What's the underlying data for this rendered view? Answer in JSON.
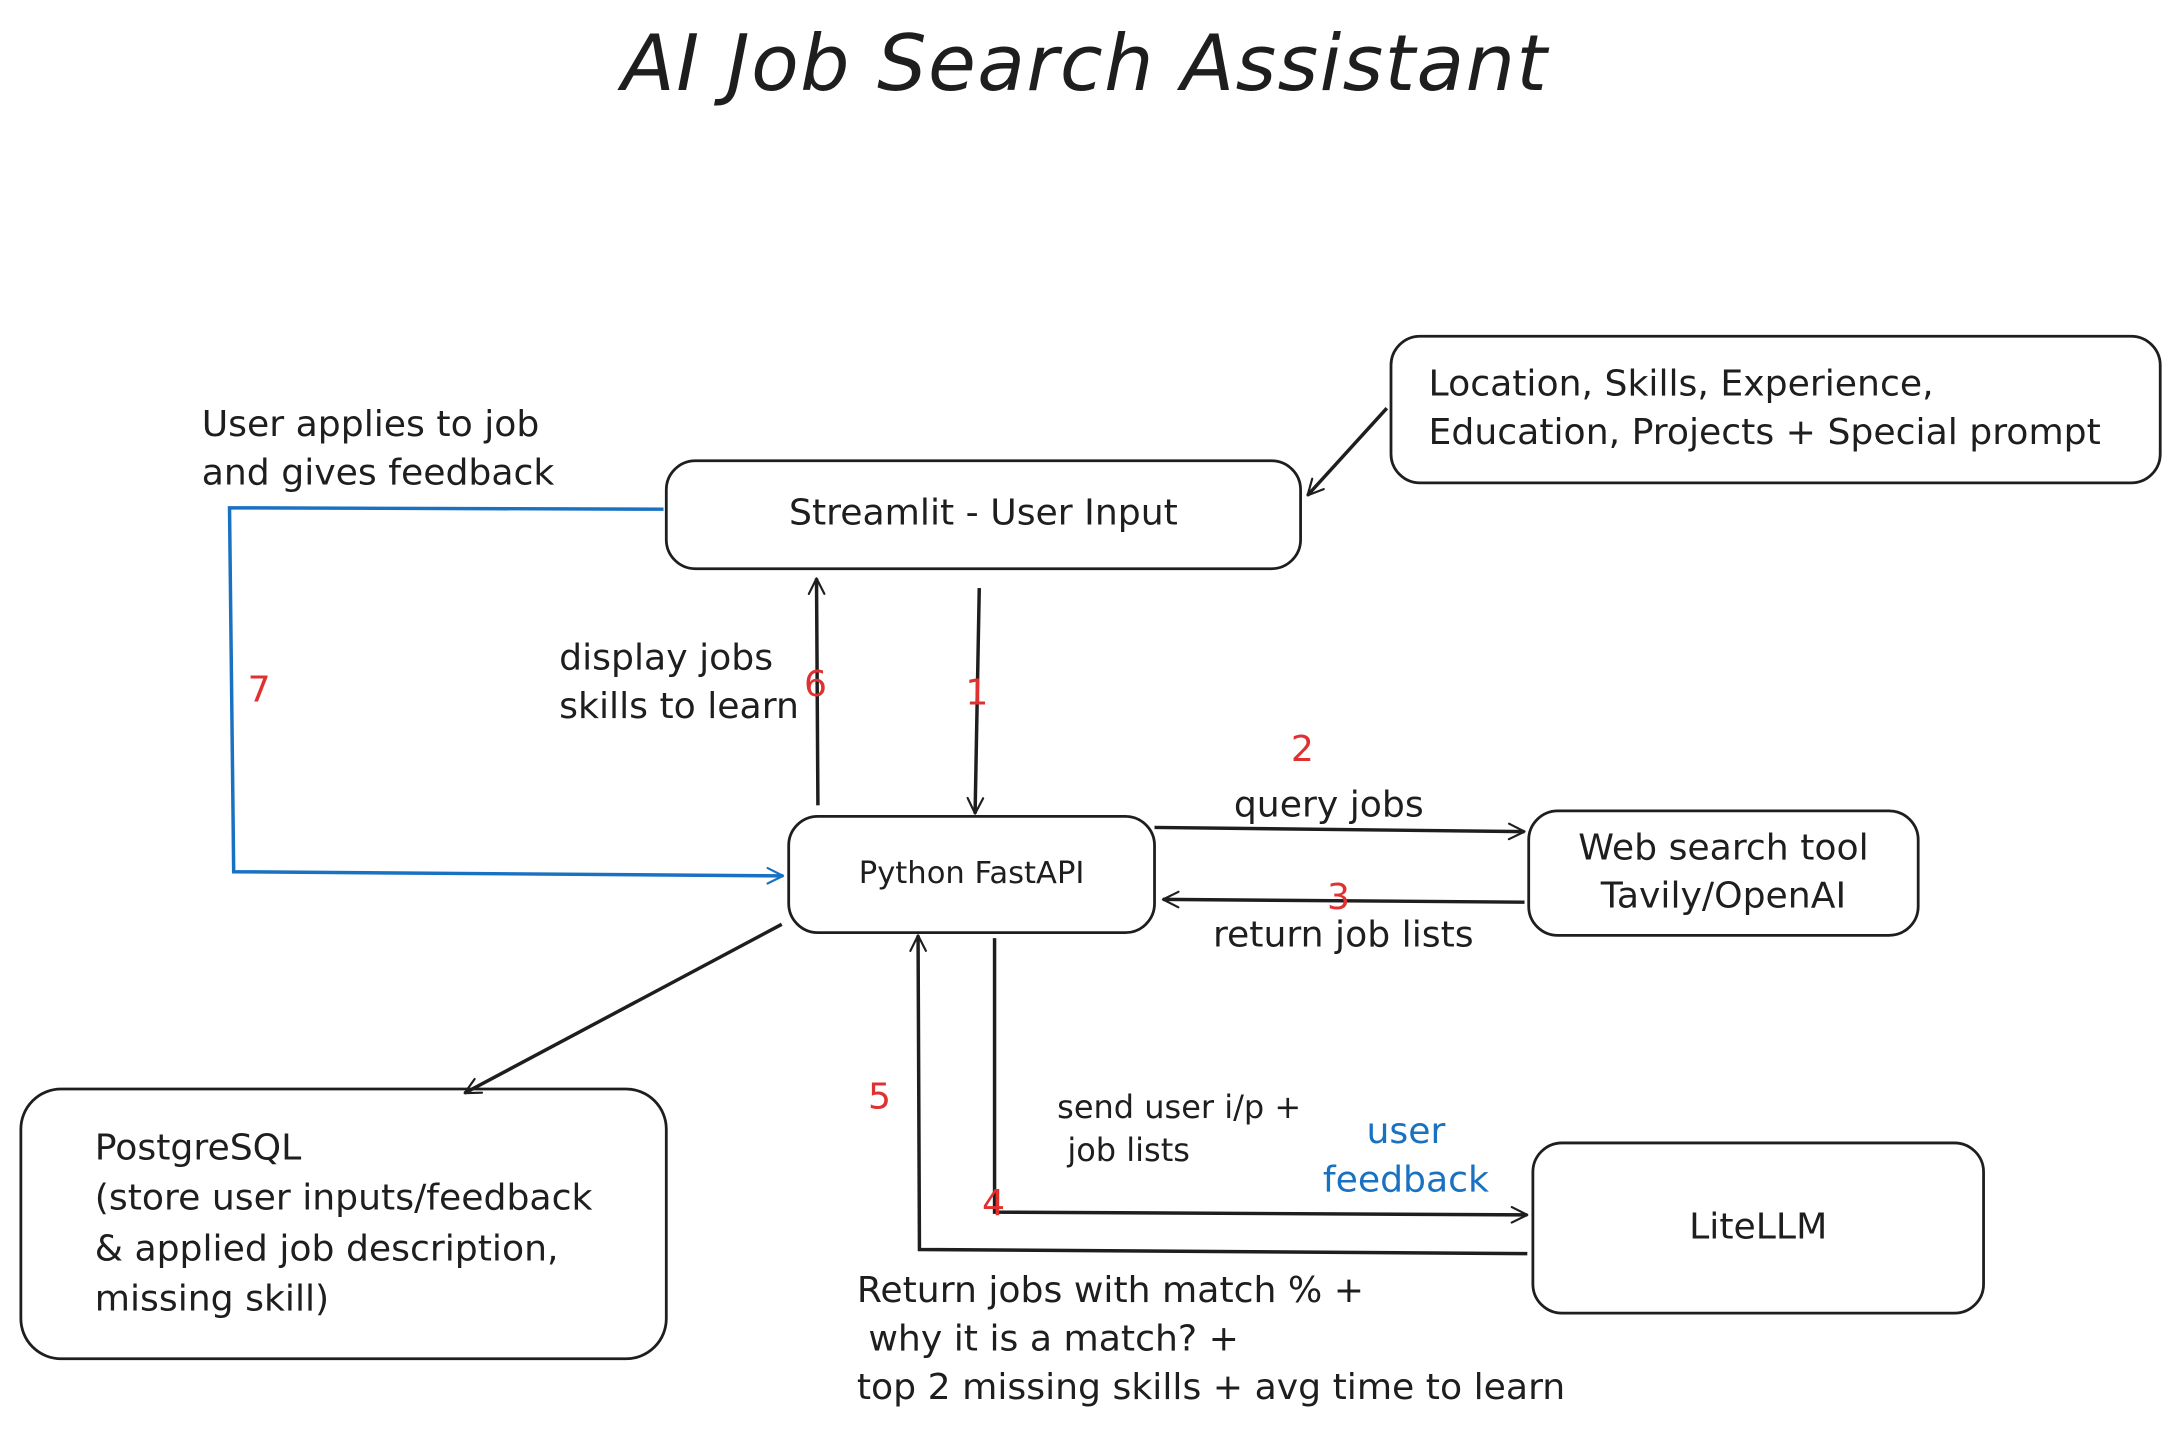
{
  "title": "AI Job Search Assistant",
  "nodes": {
    "streamlit": "Streamlit - User Input",
    "user_inputs": "Location, Skills, Experience,\nEducation, Projects + Special prompt",
    "fastapi": "Python FastAPI",
    "web_search": "Web search tool\nTavily/OpenAI",
    "litellm": "LiteLLM",
    "postgres": "PostgreSQL\n(store user inputs/feedback\n& applied job description,\nmissing skill)"
  },
  "edges": {
    "e1": {
      "step": "1",
      "label": ""
    },
    "e2": {
      "step": "2",
      "label": "query jobs"
    },
    "e3": {
      "step": "3",
      "label": "return job lists"
    },
    "e4": {
      "step": "4",
      "label": "send user i/p +\n job lists",
      "extra_label": "user\nfeedback"
    },
    "e5": {
      "step": "5",
      "label": "Return jobs with match % +\n why it is a match? +\ntop 2 missing skills + avg time to learn"
    },
    "e6": {
      "step": "6",
      "label": "display jobs\nskills to learn"
    },
    "e7": {
      "step": "7",
      "label": "User applies to job\nand gives feedback"
    }
  },
  "colors": {
    "ink": "#1e1e1e",
    "step_number": "#e03131",
    "feedback": "#1971c2"
  }
}
